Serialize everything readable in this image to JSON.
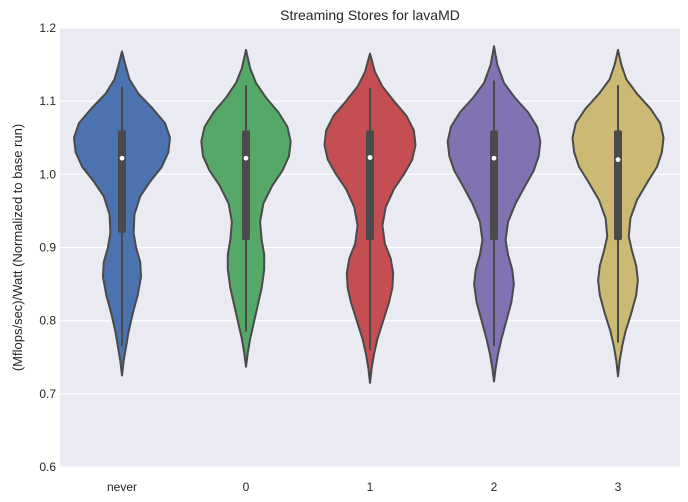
{
  "chart_data": {
    "type": "violin",
    "title": "Streaming Stores for lavaMD",
    "xlabel": "",
    "ylabel": "(Mflops/sec)/Watt (Normalized to base run)",
    "ylim": [
      0.6,
      1.2
    ],
    "yticks": [
      "0.6",
      "0.7",
      "0.8",
      "0.9",
      "1.0",
      "1.1",
      "1.2"
    ],
    "grid": true,
    "categories": [
      "never",
      "0",
      "1",
      "2",
      "3"
    ],
    "series": [
      {
        "category": "never",
        "color": "#4c72b0",
        "min": 0.725,
        "max": 1.168,
        "q1": 0.92,
        "median": 1.022,
        "q3": 1.06,
        "whisker_low": 0.765,
        "whisker_high": 1.12,
        "density": [
          [
            0.725,
            0.0
          ],
          [
            0.745,
            2.0
          ],
          [
            0.765,
            5.0
          ],
          [
            0.785,
            8.0
          ],
          [
            0.81,
            13.0
          ],
          [
            0.835,
            19.0
          ],
          [
            0.86,
            23.0
          ],
          [
            0.88,
            22.0
          ],
          [
            0.9,
            17.0
          ],
          [
            0.92,
            14.0
          ],
          [
            0.945,
            15.0
          ],
          [
            0.97,
            22.0
          ],
          [
            0.99,
            34.0
          ],
          [
            1.01,
            48.0
          ],
          [
            1.03,
            56.0
          ],
          [
            1.05,
            58.0
          ],
          [
            1.07,
            52.0
          ],
          [
            1.09,
            37.0
          ],
          [
            1.11,
            20.0
          ],
          [
            1.13,
            9.0
          ],
          [
            1.15,
            4.0
          ],
          [
            1.168,
            0.0
          ]
        ]
      },
      {
        "category": "0",
        "color": "#55a868",
        "min": 0.737,
        "max": 1.17,
        "q1": 0.91,
        "median": 1.022,
        "q3": 1.06,
        "whisker_low": 0.785,
        "whisker_high": 1.122,
        "density": [
          [
            0.737,
            0.0
          ],
          [
            0.755,
            2.0
          ],
          [
            0.775,
            5.0
          ],
          [
            0.795,
            9.0
          ],
          [
            0.82,
            14.0
          ],
          [
            0.845,
            19.0
          ],
          [
            0.87,
            22.0
          ],
          [
            0.89,
            22.0
          ],
          [
            0.91,
            19.0
          ],
          [
            0.935,
            17.0
          ],
          [
            0.96,
            21.0
          ],
          [
            0.985,
            32.0
          ],
          [
            1.005,
            44.0
          ],
          [
            1.025,
            52.0
          ],
          [
            1.045,
            54.0
          ],
          [
            1.065,
            50.0
          ],
          [
            1.085,
            39.0
          ],
          [
            1.105,
            24.0
          ],
          [
            1.125,
            12.0
          ],
          [
            1.145,
            5.0
          ],
          [
            1.17,
            0.0
          ]
        ]
      },
      {
        "category": "1",
        "color": "#c44e52",
        "min": 0.715,
        "max": 1.165,
        "q1": 0.91,
        "median": 1.023,
        "q3": 1.06,
        "whisker_low": 0.76,
        "whisker_high": 1.118,
        "density": [
          [
            0.715,
            0.0
          ],
          [
            0.735,
            2.0
          ],
          [
            0.755,
            5.0
          ],
          [
            0.775,
            9.0
          ],
          [
            0.8,
            16.0
          ],
          [
            0.825,
            23.0
          ],
          [
            0.845,
            27.0
          ],
          [
            0.865,
            28.0
          ],
          [
            0.885,
            25.0
          ],
          [
            0.905,
            18.0
          ],
          [
            0.93,
            15.0
          ],
          [
            0.955,
            19.0
          ],
          [
            0.98,
            29.0
          ],
          [
            1.0,
            41.0
          ],
          [
            1.02,
            51.0
          ],
          [
            1.04,
            55.0
          ],
          [
            1.06,
            53.0
          ],
          [
            1.08,
            44.0
          ],
          [
            1.1,
            29.0
          ],
          [
            1.12,
            15.0
          ],
          [
            1.14,
            6.0
          ],
          [
            1.165,
            0.0
          ]
        ]
      },
      {
        "category": "2",
        "color": "#8172b2",
        "min": 0.717,
        "max": 1.175,
        "q1": 0.91,
        "median": 1.022,
        "q3": 1.06,
        "whisker_low": 0.765,
        "whisker_high": 1.128,
        "density": [
          [
            0.717,
            0.0
          ],
          [
            0.735,
            2.0
          ],
          [
            0.755,
            5.0
          ],
          [
            0.775,
            9.0
          ],
          [
            0.8,
            15.0
          ],
          [
            0.825,
            21.0
          ],
          [
            0.85,
            24.0
          ],
          [
            0.87,
            22.0
          ],
          [
            0.89,
            17.0
          ],
          [
            0.91,
            14.0
          ],
          [
            0.935,
            17.0
          ],
          [
            0.96,
            26.0
          ],
          [
            0.985,
            38.0
          ],
          [
            1.005,
            48.0
          ],
          [
            1.025,
            54.0
          ],
          [
            1.045,
            56.0
          ],
          [
            1.065,
            52.0
          ],
          [
            1.085,
            41.0
          ],
          [
            1.105,
            25.0
          ],
          [
            1.125,
            12.0
          ],
          [
            1.15,
            4.0
          ],
          [
            1.175,
            0.0
          ]
        ]
      },
      {
        "category": "3",
        "color": "#ccb974",
        "min": 0.724,
        "max": 1.17,
        "q1": 0.91,
        "median": 1.02,
        "q3": 1.06,
        "whisker_low": 0.77,
        "whisker_high": 1.122,
        "density": [
          [
            0.724,
            0.0
          ],
          [
            0.745,
            2.0
          ],
          [
            0.765,
            5.0
          ],
          [
            0.785,
            9.0
          ],
          [
            0.81,
            16.0
          ],
          [
            0.835,
            22.0
          ],
          [
            0.855,
            24.0
          ],
          [
            0.875,
            22.0
          ],
          [
            0.895,
            17.0
          ],
          [
            0.915,
            13.0
          ],
          [
            0.94,
            15.0
          ],
          [
            0.965,
            23.0
          ],
          [
            0.99,
            36.0
          ],
          [
            1.01,
            47.0
          ],
          [
            1.03,
            53.0
          ],
          [
            1.05,
            55.0
          ],
          [
            1.07,
            51.0
          ],
          [
            1.09,
            39.0
          ],
          [
            1.11,
            23.0
          ],
          [
            1.13,
            10.0
          ],
          [
            1.15,
            4.0
          ],
          [
            1.17,
            0.0
          ]
        ]
      }
    ],
    "colors": {
      "background": "#eaeaf2",
      "grid": "#ffffff",
      "outline": "#4a4a4a"
    }
  }
}
